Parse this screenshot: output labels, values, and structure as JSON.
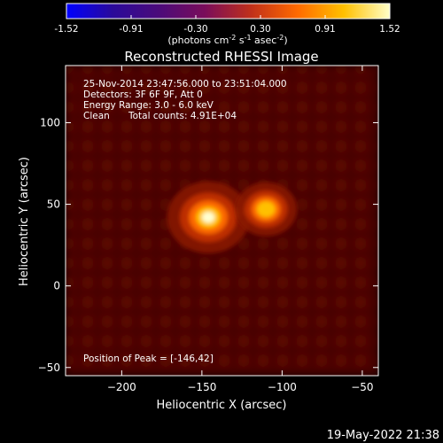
{
  "colorbar": {
    "ticks": [
      "-1.52",
      "-0.91",
      "-0.30",
      "0.30",
      "0.91",
      "1.52"
    ],
    "units_prefix": "(photons cm",
    "units_exp1": "-2",
    "units_mid": " s",
    "units_exp2": "-1",
    "units_suffix1": " asec",
    "units_exp3": "-2",
    "units_close": ")",
    "stops": [
      "#0000ff",
      "#2a0a9a",
      "#4b0b7a",
      "#7a0d5a",
      "#c0301a",
      "#ff6a00",
      "#ffc000",
      "#ffffc8"
    ]
  },
  "chart_data": {
    "type": "heatmap",
    "title": "Reconstructed RHESSI Image",
    "xlabel": "Heliocentric X (arcsec)",
    "ylabel": "Heliocentric Y (arcsec)",
    "xlim": [
      -235,
      -40
    ],
    "ylim": [
      -55,
      135
    ],
    "xticks": [
      -200,
      -150,
      -100,
      -50
    ],
    "yticks": [
      -50,
      0,
      50,
      100
    ],
    "xtick_labels": [
      "−200",
      "−150",
      "−100",
      "−50"
    ],
    "ytick_labels": [
      "−50",
      "0",
      "50",
      "100"
    ],
    "colorbar_range": [
      -1.52,
      1.52
    ],
    "sources": [
      {
        "x": -146,
        "y": 42,
        "peak": 1.52,
        "sigma": 7
      },
      {
        "x": -110,
        "y": 47,
        "peak": 1.05,
        "sigma": 6
      }
    ],
    "annotations": {
      "time": "25-Nov-2014 23:47:56.000 to 23:51:04.000",
      "detectors": "Detectors: 3F 6F 9F, Att 0",
      "energy": "Energy Range: 3.0 - 6.0 keV",
      "clean": "Clean",
      "counts": "Total counts: 4.91E+04",
      "peak": "Position of Peak = [-146,42]"
    }
  },
  "footer": {
    "timestamp": "19-May-2022 21:38"
  }
}
